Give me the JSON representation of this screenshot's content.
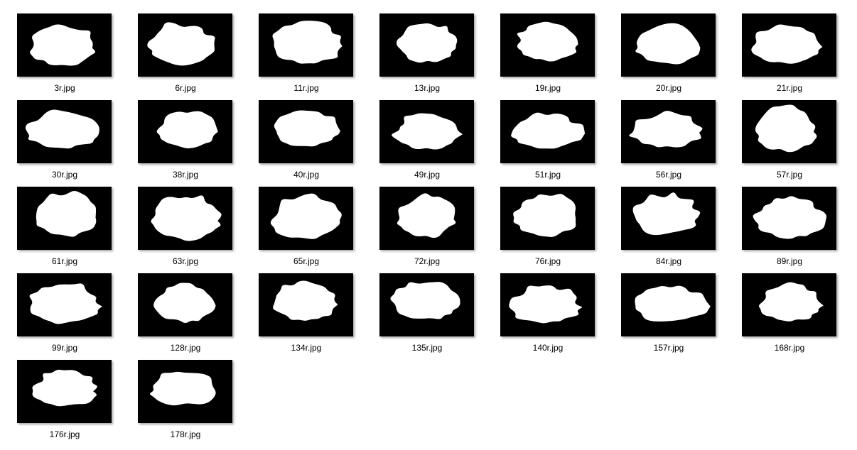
{
  "view": {
    "background_color": "#ffffff",
    "thumbnail_background": "#000000",
    "silhouette_color": "#ffffff",
    "items_per_row": 7
  },
  "files": [
    {
      "name": "3r.jpg",
      "icon": "image-thumbnail-icon"
    },
    {
      "name": "6r.jpg",
      "icon": "image-thumbnail-icon"
    },
    {
      "name": "11r.jpg",
      "icon": "image-thumbnail-icon"
    },
    {
      "name": "13r.jpg",
      "icon": "image-thumbnail-icon"
    },
    {
      "name": "19r.jpg",
      "icon": "image-thumbnail-icon"
    },
    {
      "name": "20r.jpg",
      "icon": "image-thumbnail-icon"
    },
    {
      "name": "21r.jpg",
      "icon": "image-thumbnail-icon"
    },
    {
      "name": "30r.jpg",
      "icon": "image-thumbnail-icon"
    },
    {
      "name": "38r.jpg",
      "icon": "image-thumbnail-icon"
    },
    {
      "name": "40r.jpg",
      "icon": "image-thumbnail-icon"
    },
    {
      "name": "49r.jpg",
      "icon": "image-thumbnail-icon"
    },
    {
      "name": "51r.jpg",
      "icon": "image-thumbnail-icon"
    },
    {
      "name": "56r.jpg",
      "icon": "image-thumbnail-icon"
    },
    {
      "name": "57r.jpg",
      "icon": "image-thumbnail-icon"
    },
    {
      "name": "61r.jpg",
      "icon": "image-thumbnail-icon"
    },
    {
      "name": "63r.jpg",
      "icon": "image-thumbnail-icon"
    },
    {
      "name": "65r.jpg",
      "icon": "image-thumbnail-icon"
    },
    {
      "name": "72r.jpg",
      "icon": "image-thumbnail-icon"
    },
    {
      "name": "76r.jpg",
      "icon": "image-thumbnail-icon"
    },
    {
      "name": "84r.jpg",
      "icon": "image-thumbnail-icon"
    },
    {
      "name": "89r.jpg",
      "icon": "image-thumbnail-icon"
    },
    {
      "name": "99r.jpg",
      "icon": "image-thumbnail-icon"
    },
    {
      "name": "128r.jpg",
      "icon": "image-thumbnail-icon"
    },
    {
      "name": "134r.jpg",
      "icon": "image-thumbnail-icon"
    },
    {
      "name": "135r.jpg",
      "icon": "image-thumbnail-icon"
    },
    {
      "name": "140r.jpg",
      "icon": "image-thumbnail-icon"
    },
    {
      "name": "157r.jpg",
      "icon": "image-thumbnail-icon"
    },
    {
      "name": "168r.jpg",
      "icon": "image-thumbnail-icon"
    },
    {
      "name": "176r.jpg",
      "icon": "image-thumbnail-icon"
    },
    {
      "name": "178r.jpg",
      "icon": "image-thumbnail-icon"
    }
  ]
}
